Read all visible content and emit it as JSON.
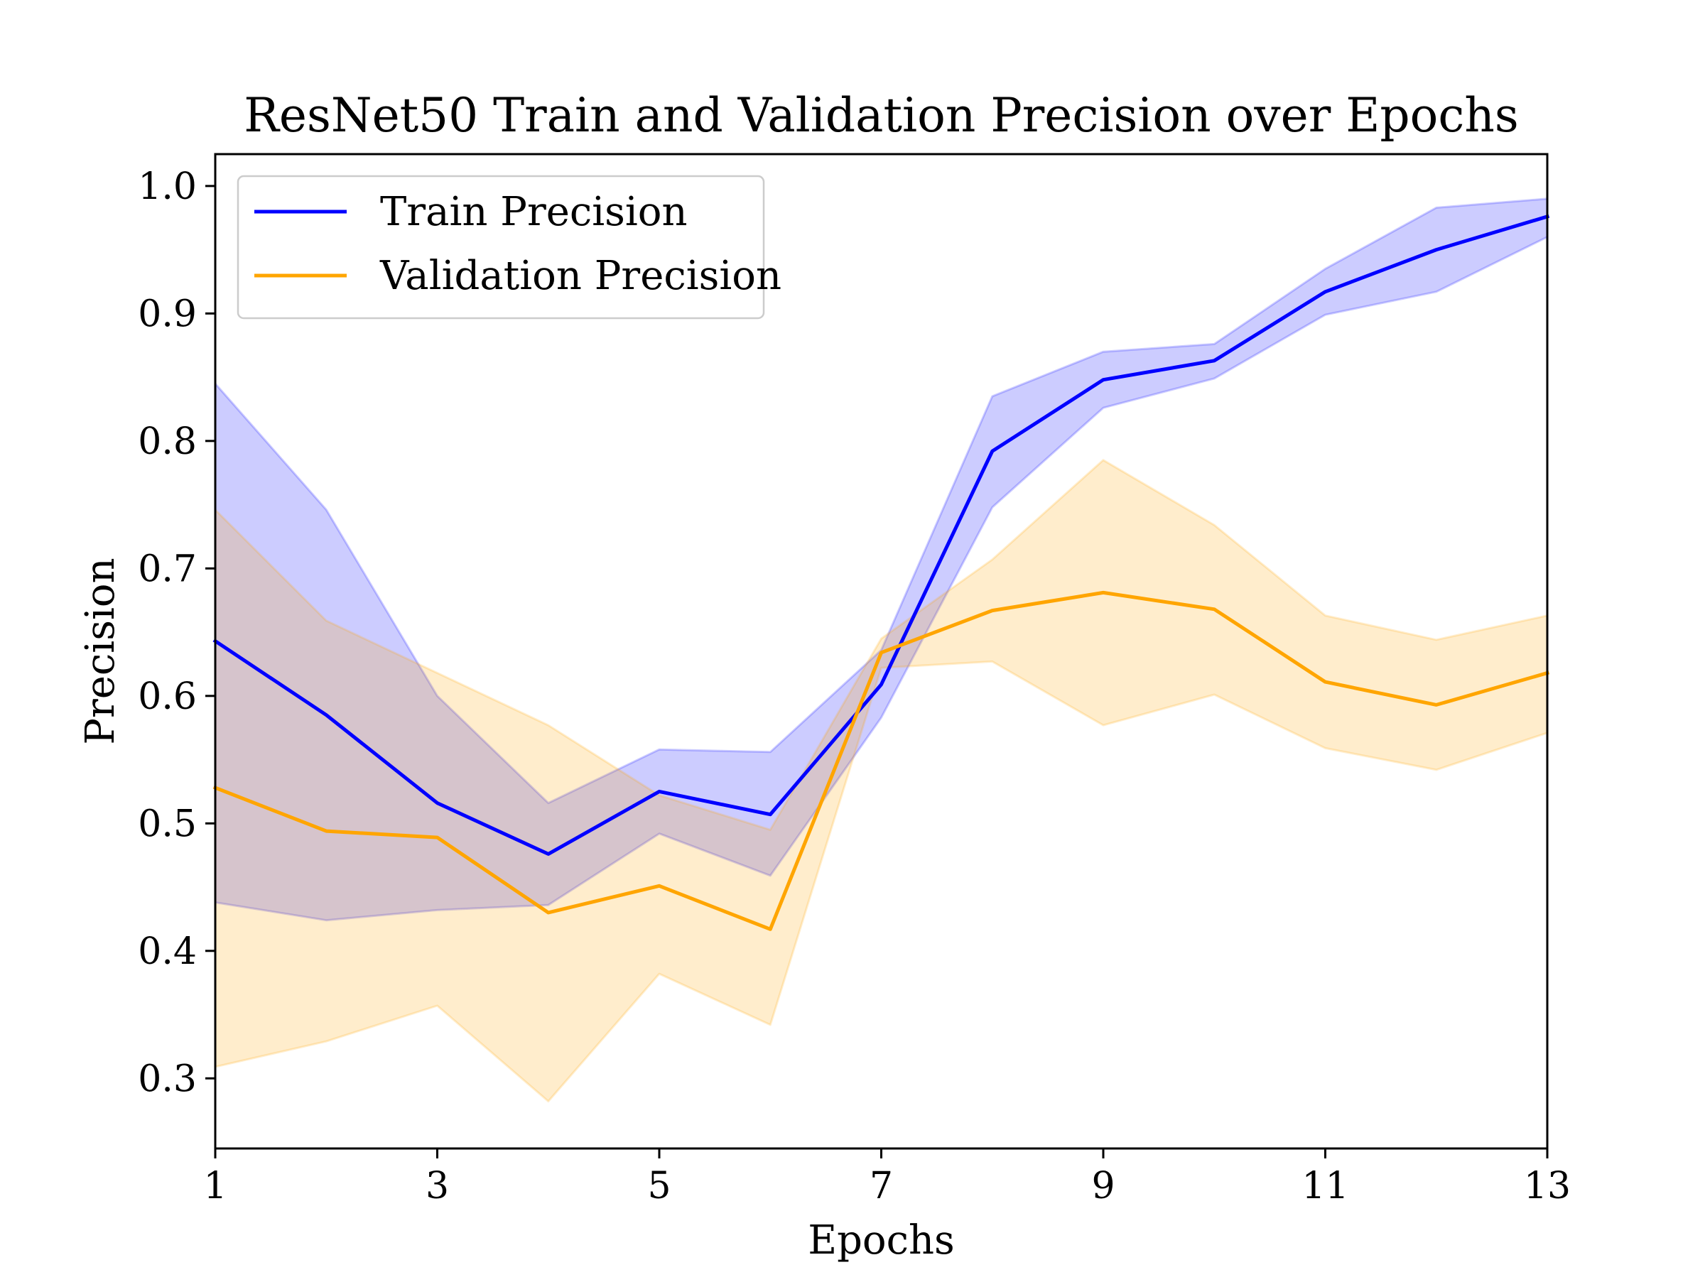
{
  "chart_data": {
    "type": "line",
    "title": "ResNet50 Train and Validation Precision over Epochs",
    "xlabel": "Epochs",
    "ylabel": "Precision",
    "xlim": [
      1,
      13
    ],
    "ylim": [
      0.245,
      1.025
    ],
    "x": [
      1,
      2,
      3,
      4,
      5,
      6,
      7,
      8,
      9,
      10,
      11,
      12,
      13
    ],
    "xticks": [
      1,
      3,
      5,
      7,
      9,
      11,
      13
    ],
    "xtick_labels": [
      "1",
      "3",
      "5",
      "7",
      "9",
      "11",
      "13"
    ],
    "yticks": [
      0.3,
      0.4,
      0.5,
      0.6,
      0.7,
      0.8,
      0.9,
      1.0
    ],
    "ytick_labels": [
      "0.3",
      "0.4",
      "0.5",
      "0.6",
      "0.7",
      "0.8",
      "0.9",
      "1.0"
    ],
    "grid": false,
    "legend_position": "top-left",
    "series": [
      {
        "name": "Train Precision",
        "color": "#0000ff",
        "band_color": "#0000ff",
        "values": [
          0.643,
          0.585,
          0.516,
          0.476,
          0.525,
          0.507,
          0.609,
          0.792,
          0.848,
          0.863,
          0.917,
          0.95,
          0.976
        ],
        "band_upper": [
          0.845,
          0.746,
          0.6,
          0.516,
          0.558,
          0.556,
          0.636,
          0.835,
          0.87,
          0.876,
          0.935,
          0.983,
          0.99
        ],
        "band_lower": [
          0.438,
          0.424,
          0.432,
          0.436,
          0.492,
          0.459,
          0.583,
          0.748,
          0.826,
          0.849,
          0.899,
          0.917,
          0.96
        ]
      },
      {
        "name": "Validation Precision",
        "color": "#ffa500",
        "band_color": "#ffa500",
        "values": [
          0.528,
          0.494,
          0.489,
          0.43,
          0.451,
          0.417,
          0.634,
          0.667,
          0.681,
          0.668,
          0.611,
          0.593,
          0.618
        ],
        "band_upper": [
          0.746,
          0.659,
          0.618,
          0.577,
          0.522,
          0.495,
          0.645,
          0.707,
          0.785,
          0.734,
          0.663,
          0.644,
          0.663
        ],
        "band_lower": [
          0.309,
          0.329,
          0.357,
          0.282,
          0.382,
          0.342,
          0.622,
          0.627,
          0.577,
          0.601,
          0.559,
          0.542,
          0.571
        ]
      }
    ]
  }
}
